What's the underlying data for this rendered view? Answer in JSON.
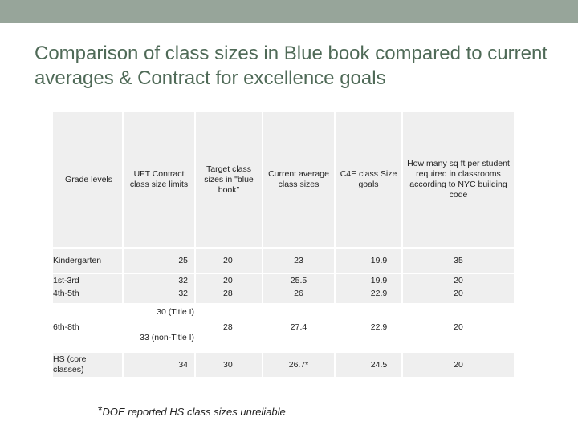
{
  "title": "Comparison of class sizes in Blue book compared to current averages & Contract for excellence goals",
  "table": {
    "headers": [
      "Grade levels",
      "UFT Contract class size limits",
      "Target class sizes in \"blue book\"",
      "Current average class sizes",
      "C4E class Size goals",
      "How many sq ft per student required in classrooms according to NYC building code"
    ],
    "rows": [
      {
        "grade": "Kindergarten",
        "uft": "25",
        "target": "20",
        "current": "23",
        "c4e": "19.9",
        "sqft": "35"
      },
      {
        "grade": "1st-3rd",
        "uft": "32",
        "target": "20",
        "current": "25.5",
        "c4e": "19.9",
        "sqft": "20"
      },
      {
        "grade": "4th-5th",
        "uft": "32",
        "target": "28",
        "current": "26",
        "c4e": "22.9",
        "sqft": "20"
      },
      {
        "grade": "6th-8th",
        "uft_a": "30 (Title I)",
        "uft_b": "33 (non-Title I)",
        "target": "28",
        "current": "27.4",
        "c4e": "22.9",
        "sqft": "20"
      },
      {
        "grade": "HS (core classes)",
        "uft": "34",
        "target": "30",
        "current": "26.7*",
        "c4e": "24.5",
        "sqft": "20"
      }
    ]
  },
  "footnote": {
    "star": "*",
    "text": "DOE reported HS class sizes unreliable"
  }
}
